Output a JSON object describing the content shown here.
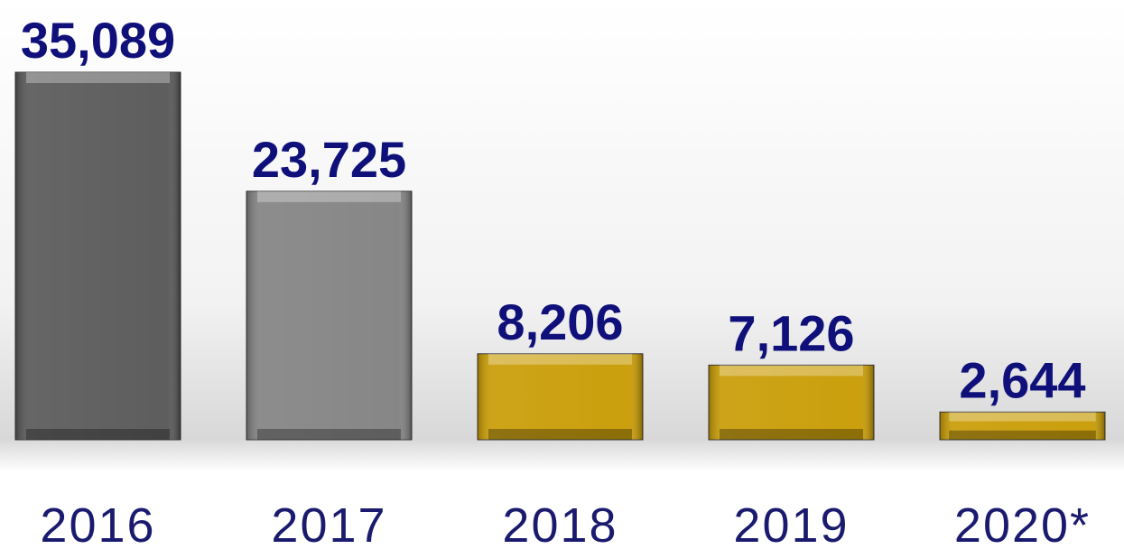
{
  "chart_data": {
    "type": "bar",
    "categories": [
      "2016",
      "2017",
      "2018",
      "2019",
      "2020*"
    ],
    "values": [
      35089,
      23725,
      8206,
      7126,
      2644
    ],
    "value_labels": [
      "35,089",
      "23,725",
      "8,206",
      "7,126",
      "2,644"
    ],
    "colors": [
      "#555555",
      "#808080",
      "#c89a00",
      "#c89a00",
      "#c89a00"
    ]
  }
}
